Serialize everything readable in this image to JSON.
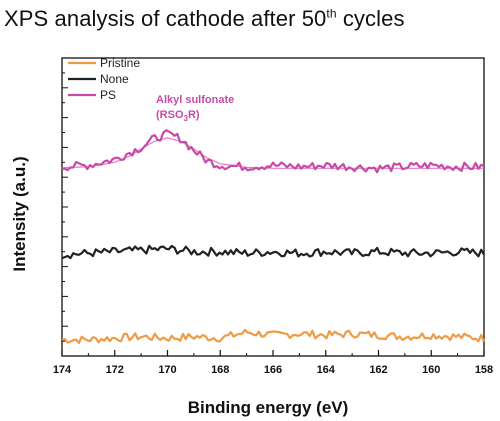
{
  "chart_data": {
    "type": "line",
    "title": {
      "main": "XPS analysis of cathode after 50",
      "sup": "th",
      "tail": " cycles"
    },
    "xlabel": "Binding energy (eV)",
    "ylabel": "Intensity (a.u.)",
    "xlim": [
      174,
      158
    ],
    "x_reversed": true,
    "x_ticks": [
      "174",
      "172",
      "170",
      "168",
      "166",
      "164",
      "162",
      "160",
      "158"
    ],
    "ylim": [
      0,
      10
    ],
    "y_ticks_labeled": false,
    "grid": false,
    "legend_position": "top-left",
    "series": [
      {
        "name": "Pristine",
        "color": "#ef9a45",
        "x": [
          174,
          173,
          172,
          171,
          170,
          169,
          168,
          167,
          166,
          165,
          164,
          163,
          162,
          161,
          160,
          159,
          158
        ],
        "y": [
          0.55,
          0.55,
          0.6,
          0.65,
          0.6,
          0.65,
          0.6,
          0.8,
          0.7,
          0.75,
          0.7,
          0.75,
          0.7,
          0.65,
          0.7,
          0.65,
          0.6
        ]
      },
      {
        "name": "None",
        "color": "#222222",
        "x": [
          174,
          173,
          172,
          171,
          170,
          169,
          168,
          167,
          166,
          165,
          164,
          163,
          162,
          161,
          160,
          159,
          158
        ],
        "y": [
          3.4,
          3.45,
          3.5,
          3.55,
          3.6,
          3.5,
          3.5,
          3.45,
          3.5,
          3.45,
          3.5,
          3.45,
          3.5,
          3.45,
          3.45,
          3.5,
          3.45
        ]
      },
      {
        "name": "PS",
        "color": "#c84aa8",
        "x": [
          174,
          173,
          172,
          171,
          170.5,
          170,
          169.5,
          169,
          168.5,
          168,
          167,
          166,
          165,
          164,
          163,
          162,
          161,
          160,
          159,
          158
        ],
        "y": [
          6.35,
          6.4,
          6.6,
          7.0,
          7.3,
          7.45,
          7.3,
          6.9,
          6.55,
          6.4,
          6.35,
          6.4,
          6.35,
          6.4,
          6.35,
          6.3,
          6.35,
          6.4,
          6.35,
          6.35
        ]
      }
    ],
    "fit_curve": {
      "color": "#e07cc6",
      "x": [
        174,
        173,
        172,
        171.5,
        171,
        170.5,
        170,
        169.5,
        169,
        168.5,
        168,
        167,
        166,
        164,
        162,
        160,
        158
      ],
      "y": [
        6.32,
        6.35,
        6.5,
        6.68,
        6.95,
        7.2,
        7.32,
        7.2,
        6.95,
        6.65,
        6.45,
        6.33,
        6.3,
        6.3,
        6.3,
        6.3,
        6.3
      ]
    },
    "annotation": {
      "line1": "Alkyl sulfonate",
      "line2_prefix": "(RSO",
      "line2_sub": "3",
      "line2_suffix": "R)",
      "color": "#c84aa8"
    }
  }
}
